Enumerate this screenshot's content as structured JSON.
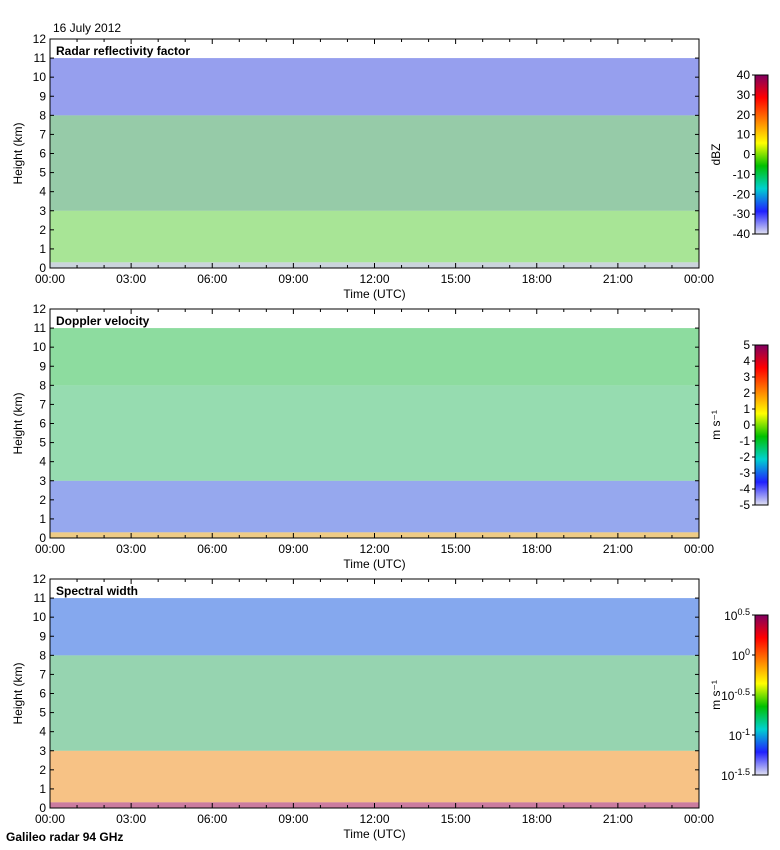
{
  "date_label": "16 July 2012",
  "footer_label": "Galileo radar 94 GHz",
  "chart_data": [
    {
      "type": "heatmap",
      "title": "Radar reflectivity factor",
      "xlabel": "Time (UTC)",
      "ylabel": "Height (km)",
      "x_ticks": [
        "00:00",
        "03:00",
        "06:00",
        "09:00",
        "12:00",
        "15:00",
        "18:00",
        "21:00",
        "00:00"
      ],
      "y_ticks": [
        "0",
        "1",
        "2",
        "3",
        "4",
        "5",
        "6",
        "7",
        "8",
        "9",
        "10",
        "11",
        "12"
      ],
      "xlim_hours": [
        0,
        24
      ],
      "ylim_km": [
        0,
        12
      ],
      "colorbar": {
        "unit_label": "dBZ",
        "range": [
          -40,
          40
        ],
        "ticks": [
          "40",
          "30",
          "20",
          "10",
          "0",
          "-10",
          "-20",
          "-30",
          "-40"
        ],
        "colors": [
          "#e0e0f0",
          "#2020ff",
          "#00d0d0",
          "#00c000",
          "#ffff00",
          "#ff8000",
          "#ff0000",
          "#800060"
        ]
      },
      "dominant_color_by_height": [
        {
          "range_km": [
            0,
            0.3
          ],
          "color": "#a0b0c0"
        },
        {
          "range_km": [
            0.3,
            3
          ],
          "color": "#60d040"
        },
        {
          "range_km": [
            3,
            8
          ],
          "color": "#40a060"
        },
        {
          "range_km": [
            8,
            11
          ],
          "color": "#4050e0"
        }
      ]
    },
    {
      "type": "heatmap",
      "title": "Doppler velocity",
      "xlabel": "Time (UTC)",
      "ylabel": "Height (km)",
      "x_ticks": [
        "00:00",
        "03:00",
        "06:00",
        "09:00",
        "12:00",
        "15:00",
        "18:00",
        "21:00",
        "00:00"
      ],
      "y_ticks": [
        "0",
        "1",
        "2",
        "3",
        "4",
        "5",
        "6",
        "7",
        "8",
        "9",
        "10",
        "11",
        "12"
      ],
      "xlim_hours": [
        0,
        24
      ],
      "ylim_km": [
        0,
        12
      ],
      "colorbar": {
        "unit_label": "m s⁻¹",
        "range": [
          -5,
          5
        ],
        "ticks": [
          "5",
          "4",
          "3",
          "2",
          "1",
          "0",
          "-1",
          "-2",
          "-3",
          "-4",
          "-5"
        ],
        "colors": [
          "#e0e0f0",
          "#2020ff",
          "#00d0d0",
          "#00c000",
          "#ffff00",
          "#ff8000",
          "#ff0000",
          "#800060"
        ]
      },
      "dominant_color_by_height": [
        {
          "range_km": [
            0,
            0.3
          ],
          "color": "#e0a020"
        },
        {
          "range_km": [
            0.3,
            3
          ],
          "color": "#4060e0"
        },
        {
          "range_km": [
            3,
            8
          ],
          "color": "#40c070"
        },
        {
          "range_km": [
            8,
            11
          ],
          "color": "#30c050"
        }
      ]
    },
    {
      "type": "heatmap",
      "title": "Spectral width",
      "xlabel": "Time (UTC)",
      "ylabel": "Height (km)",
      "x_ticks": [
        "00:00",
        "03:00",
        "06:00",
        "09:00",
        "12:00",
        "15:00",
        "18:00",
        "21:00",
        "00:00"
      ],
      "y_ticks": [
        "0",
        "1",
        "2",
        "3",
        "4",
        "5",
        "6",
        "7",
        "8",
        "9",
        "10",
        "11",
        "12"
      ],
      "xlim_hours": [
        0,
        24
      ],
      "ylim_km": [
        0,
        12
      ],
      "colorbar": {
        "unit_label": "m s⁻¹",
        "range_log10": [
          -1.5,
          0.5
        ],
        "ticks": [
          {
            "base": "10",
            "exp": "0.5"
          },
          {
            "base": "10",
            "exp": "0"
          },
          {
            "base": "10",
            "exp": "-0.5"
          },
          {
            "base": "10",
            "exp": "-1"
          },
          {
            "base": "10",
            "exp": "-1.5"
          }
        ],
        "colors": [
          "#e0e0f0",
          "#2020ff",
          "#00d0d0",
          "#00c000",
          "#ffff00",
          "#ff8000",
          "#ff0000",
          "#800060"
        ]
      },
      "dominant_color_by_height": [
        {
          "range_km": [
            0,
            0.3
          ],
          "color": "#a01050"
        },
        {
          "range_km": [
            0.3,
            3
          ],
          "color": "#f09020"
        },
        {
          "range_km": [
            3,
            8
          ],
          "color": "#40b070"
        },
        {
          "range_km": [
            8,
            11
          ],
          "color": "#2060e0"
        }
      ]
    }
  ]
}
